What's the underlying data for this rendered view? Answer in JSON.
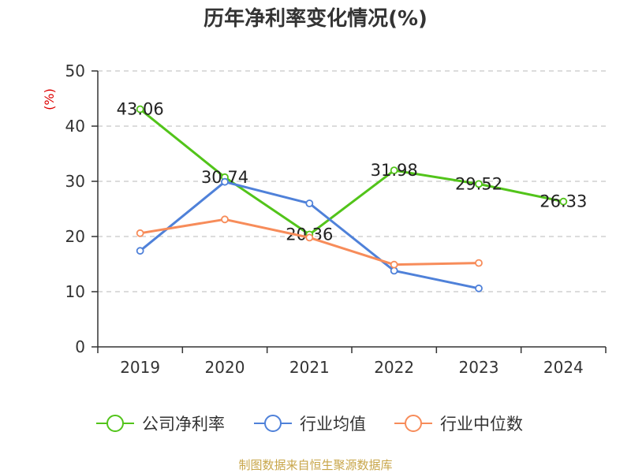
{
  "chart_data": {
    "type": "line",
    "title": "历年净利率变化情况(%)",
    "unit": "(%)",
    "categories": [
      "2019",
      "2020",
      "2021",
      "2022",
      "2023",
      "2024"
    ],
    "ylim": [
      0,
      50
    ],
    "yticks": [
      0,
      10,
      20,
      30,
      40,
      50
    ],
    "grid": true,
    "legend_position": "bottom",
    "series": [
      {
        "name": "公司净利率",
        "color": "#52c41a",
        "values": [
          43.06,
          30.74,
          20.36,
          31.98,
          29.52,
          26.33
        ],
        "labels": [
          "43.06",
          "30.74",
          "20.36",
          "31.98",
          "29.52",
          "26.33"
        ]
      },
      {
        "name": "行业均值",
        "color": "#4f81d9",
        "values": [
          17.4,
          29.9,
          26.0,
          13.8,
          10.6,
          null
        ]
      },
      {
        "name": "行业中位数",
        "color": "#f78c5a",
        "values": [
          20.6,
          23.1,
          19.8,
          14.9,
          15.2,
          null
        ]
      }
    ],
    "source": "制图数据来自恒生聚源数据库"
  }
}
